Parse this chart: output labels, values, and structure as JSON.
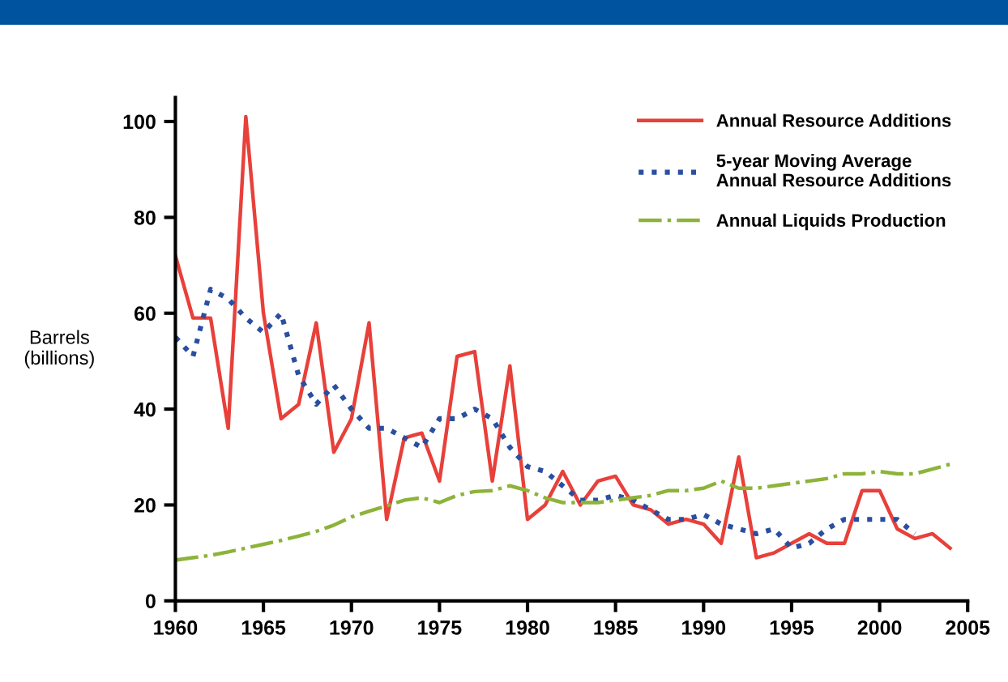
{
  "chart_data": {
    "type": "line",
    "ylabel": "Barrels\n(billions)",
    "xlim": [
      1960,
      2005
    ],
    "xticks": [
      1960,
      1965,
      1970,
      1975,
      1980,
      1985,
      1990,
      1995,
      2000,
      2005
    ],
    "ylim": [
      0,
      105
    ],
    "yticks": [
      0,
      20,
      40,
      60,
      80,
      100
    ],
    "grid": false,
    "legend": "top right",
    "series": [
      {
        "name": "Annual Resource Additions",
        "color": "#e8403a",
        "line_style": "solid",
        "x": [
          1960,
          1961,
          1962,
          1963,
          1964,
          1965,
          1966,
          1967,
          1968,
          1969,
          1970,
          1971,
          1972,
          1973,
          1974,
          1975,
          1976,
          1977,
          1978,
          1979,
          1980,
          1981,
          1982,
          1983,
          1984,
          1985,
          1986,
          1987,
          1988,
          1989,
          1990,
          1991,
          1992,
          1993,
          1994,
          1995,
          1996,
          1997,
          1998,
          1999,
          2000,
          2001,
          2002,
          2003,
          2004
        ],
        "values": [
          72,
          59,
          59,
          36,
          101,
          60,
          38,
          41,
          58,
          31,
          38,
          58,
          17,
          34,
          35,
          25,
          51,
          52,
          25,
          49,
          17,
          20,
          27,
          20,
          25,
          26,
          20,
          19,
          16,
          17,
          16,
          12,
          30,
          9,
          10,
          12,
          14,
          12,
          12,
          23,
          23,
          15,
          13,
          14,
          11
        ]
      },
      {
        "name": "5-year Moving Average\nAnnual Resource Additions",
        "color": "#2a4ea0",
        "line_style": "dotted",
        "x": [
          1960,
          1961,
          1962,
          1963,
          1964,
          1965,
          1966,
          1967,
          1968,
          1969,
          1970,
          1971,
          1972,
          1973,
          1974,
          1975,
          1976,
          1977,
          1978,
          1979,
          1980,
          1981,
          1982,
          1983,
          1984,
          1985,
          1986,
          1987,
          1988,
          1989,
          1990,
          1991,
          1992,
          1993,
          1994,
          1995,
          1996,
          1997,
          1998,
          1999,
          2000,
          2001,
          2002
        ],
        "values": [
          55,
          51,
          65,
          63,
          59,
          56,
          60,
          47,
          41,
          45,
          40,
          36,
          36,
          34,
          32,
          38,
          38,
          40,
          38,
          32,
          28,
          27,
          24,
          21,
          21,
          22,
          21,
          19,
          17,
          17,
          18,
          16,
          15,
          14,
          15,
          11,
          12,
          15,
          17,
          17,
          17,
          17,
          14
        ]
      },
      {
        "name": "Annual Liquids Production",
        "color": "#8db33a",
        "line_style": "dashdot",
        "x": [
          1960,
          1961,
          1962,
          1963,
          1964,
          1965,
          1966,
          1967,
          1968,
          1969,
          1970,
          1971,
          1972,
          1973,
          1974,
          1975,
          1976,
          1977,
          1978,
          1979,
          1980,
          1981,
          1982,
          1983,
          1984,
          1985,
          1986,
          1987,
          1988,
          1989,
          1990,
          1991,
          1992,
          1993,
          1994,
          1995,
          1996,
          1997,
          1998,
          1999,
          2000,
          2001,
          2002,
          2003,
          2004
        ],
        "values": [
          8.5,
          9,
          9.5,
          10.2,
          11,
          11.8,
          12.6,
          13.5,
          14.5,
          15.8,
          17.5,
          18.7,
          19.8,
          21,
          21.5,
          20.5,
          22,
          22.8,
          23,
          24,
          23,
          21.5,
          20.5,
          20.5,
          20.5,
          21,
          21.5,
          22,
          23,
          23,
          23.5,
          25,
          23.5,
          23.5,
          24,
          24.5,
          25,
          25.5,
          26.5,
          26.5,
          27,
          26.5,
          26.5,
          27.5,
          28.5
        ]
      }
    ]
  }
}
